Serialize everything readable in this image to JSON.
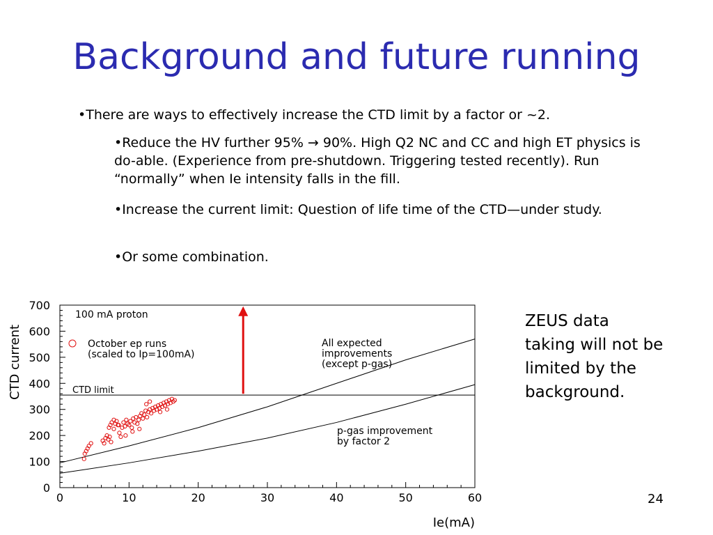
{
  "slide": {
    "title": "Background and future running",
    "bullets": [
      "•There are ways to effectively increase the CTD limit by a factor or ~2.",
      "•Reduce the HV further  95% → 90%.  High Q2 NC and CC and high ET physics is do-able.  (Experience from pre-shutdown.  Triggering tested recently).  Run “normally” when Ie intensity falls in the fill.",
      "•Increase the current limit: Question of life time of the CTD—under study.",
      "•Or some combination."
    ],
    "side_note": "ZEUS data taking will not be limited by the background.",
    "page_number": "24"
  },
  "chart_data": {
    "type": "scatter",
    "title": "",
    "xlabel": "Ie(mA)",
    "ylabel": "CTD current",
    "xlim": [
      0,
      60
    ],
    "ylim": [
      0,
      700
    ],
    "x_ticks": [
      0,
      10,
      20,
      30,
      40,
      50,
      60
    ],
    "y_ticks": [
      0,
      100,
      200,
      300,
      400,
      500,
      600,
      700
    ],
    "grid": false,
    "annotations": {
      "header": "100 mA proton",
      "legend_label_line1": "October ep runs",
      "legend_label_line2": "(scaled to Ip=100mA)",
      "limit_label": "CTD limit",
      "upper_curve_label": [
        "All expected",
        "improvements",
        "(except p-gas)"
      ],
      "lower_curve_label": [
        "p-gas improvement",
        "by factor 2"
      ]
    },
    "ctd_limit": 355,
    "arrow": {
      "x": 26.5,
      "y_from": 360,
      "y_to": 690
    },
    "curves": [
      {
        "label": "upper",
        "x": [
          0,
          10,
          20,
          30,
          40,
          50,
          60
        ],
        "y": [
          95,
          160,
          230,
          310,
          400,
          490,
          570
        ]
      },
      {
        "label": "lower",
        "x": [
          0,
          10,
          20,
          30,
          40,
          50,
          60
        ],
        "y": [
          55,
          95,
          140,
          190,
          250,
          320,
          395
        ]
      }
    ],
    "series": [
      {
        "name": "October ep runs",
        "color": "#e01010",
        "points": [
          [
            3.5,
            110
          ],
          [
            3.6,
            130
          ],
          [
            3.8,
            140
          ],
          [
            4.0,
            150
          ],
          [
            4.2,
            160
          ],
          [
            4.5,
            170
          ],
          [
            6.2,
            180
          ],
          [
            6.4,
            170
          ],
          [
            6.6,
            190
          ],
          [
            6.8,
            200
          ],
          [
            7.0,
            185
          ],
          [
            7.2,
            195
          ],
          [
            7.4,
            175
          ],
          [
            7.1,
            230
          ],
          [
            7.3,
            240
          ],
          [
            7.5,
            250
          ],
          [
            7.8,
            225
          ],
          [
            8.0,
            245
          ],
          [
            8.2,
            255
          ],
          [
            8.4,
            240
          ],
          [
            8.6,
            210
          ],
          [
            8.8,
            195
          ],
          [
            9.0,
            230
          ],
          [
            9.2,
            250
          ],
          [
            9.4,
            235
          ],
          [
            9.6,
            260
          ],
          [
            9.8,
            245
          ],
          [
            10.0,
            240
          ],
          [
            10.2,
            255
          ],
          [
            10.4,
            230
          ],
          [
            10.6,
            265
          ],
          [
            10.8,
            250
          ],
          [
            11.0,
            270
          ],
          [
            11.2,
            245
          ],
          [
            11.4,
            260
          ],
          [
            11.6,
            275
          ],
          [
            11.8,
            285
          ],
          [
            12.0,
            265
          ],
          [
            12.2,
            280
          ],
          [
            12.4,
            295
          ],
          [
            12.6,
            270
          ],
          [
            12.8,
            290
          ],
          [
            13.0,
            300
          ],
          [
            13.2,
            285
          ],
          [
            13.4,
            305
          ],
          [
            13.6,
            295
          ],
          [
            13.8,
            310
          ],
          [
            14.0,
            300
          ],
          [
            14.2,
            315
          ],
          [
            14.4,
            305
          ],
          [
            14.6,
            320
          ],
          [
            14.8,
            310
          ],
          [
            15.0,
            325
          ],
          [
            15.2,
            315
          ],
          [
            15.4,
            330
          ],
          [
            15.6,
            320
          ],
          [
            15.8,
            335
          ],
          [
            16.0,
            325
          ],
          [
            16.2,
            340
          ],
          [
            16.4,
            330
          ],
          [
            16.6,
            335
          ],
          [
            12.5,
            320
          ],
          [
            13.0,
            330
          ],
          [
            8.5,
            240
          ],
          [
            9.5,
            200
          ],
          [
            10.5,
            215
          ],
          [
            11.5,
            225
          ],
          [
            7.8,
            260
          ],
          [
            14.5,
            290
          ],
          [
            15.5,
            300
          ]
        ]
      }
    ]
  },
  "colors": {
    "title": "#2b2bb0",
    "points": "#e01010",
    "arrow": "#e01010"
  }
}
